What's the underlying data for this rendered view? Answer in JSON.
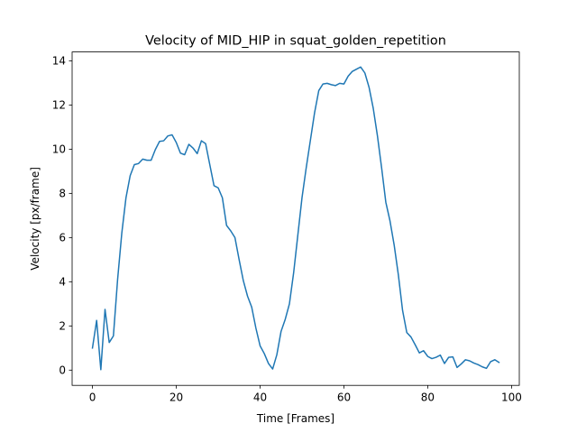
{
  "chart_data": {
    "type": "line",
    "title": "Velocity of MID_HIP in squat_golden_repetition",
    "xlabel": "Time [Frames]",
    "ylabel": "Velocity [px/frame]",
    "xlim": [
      -4.85,
      101.85
    ],
    "ylim": [
      -0.69,
      14.4
    ],
    "xticks": [
      0,
      20,
      40,
      60,
      80,
      100
    ],
    "yticks": [
      0,
      2,
      4,
      6,
      8,
      10,
      12,
      14
    ],
    "grid": false,
    "legend": "none",
    "series": [
      {
        "color": "#1f77b4",
        "x": [
          0,
          1,
          2,
          3,
          4,
          5,
          6,
          7,
          8,
          9,
          10,
          11,
          12,
          13,
          14,
          15,
          16,
          17,
          18,
          19,
          20,
          21,
          22,
          23,
          24,
          25,
          26,
          27,
          28,
          29,
          30,
          31,
          32,
          33,
          34,
          35,
          36,
          37,
          38,
          39,
          40,
          41,
          42,
          43,
          44,
          45,
          46,
          47,
          48,
          49,
          50,
          51,
          52,
          53,
          54,
          55,
          56,
          57,
          58,
          59,
          60,
          61,
          62,
          63,
          64,
          65,
          66,
          67,
          68,
          69,
          70,
          71,
          72,
          73,
          74,
          75,
          76,
          77,
          78,
          79,
          80,
          81,
          82,
          83,
          84,
          85,
          86,
          87,
          88,
          89,
          90,
          91,
          92,
          93,
          94,
          95,
          96,
          97
        ],
        "y": [
          1.0,
          2.25,
          0.02,
          2.75,
          1.25,
          1.55,
          4.1,
          6.2,
          7.8,
          8.8,
          9.3,
          9.35,
          9.55,
          9.5,
          9.5,
          9.98,
          10.35,
          10.38,
          10.6,
          10.65,
          10.3,
          9.82,
          9.75,
          10.22,
          10.05,
          9.8,
          10.38,
          10.25,
          9.3,
          8.35,
          8.25,
          7.8,
          6.55,
          6.3,
          6.0,
          5.0,
          4.05,
          3.35,
          2.85,
          1.9,
          1.1,
          0.75,
          0.3,
          0.05,
          0.7,
          1.75,
          2.3,
          3.0,
          4.4,
          6.1,
          7.8,
          9.15,
          10.4,
          11.65,
          12.65,
          12.95,
          12.98,
          12.92,
          12.88,
          12.98,
          12.95,
          13.3,
          13.52,
          13.62,
          13.72,
          13.45,
          12.8,
          11.85,
          10.6,
          9.15,
          7.6,
          6.75,
          5.65,
          4.3,
          2.7,
          1.7,
          1.5,
          1.15,
          0.78,
          0.88,
          0.62,
          0.52,
          0.58,
          0.68,
          0.3,
          0.58,
          0.6,
          0.12,
          0.28,
          0.47,
          0.42,
          0.32,
          0.25,
          0.15,
          0.08,
          0.38,
          0.47,
          0.35
        ]
      }
    ]
  }
}
